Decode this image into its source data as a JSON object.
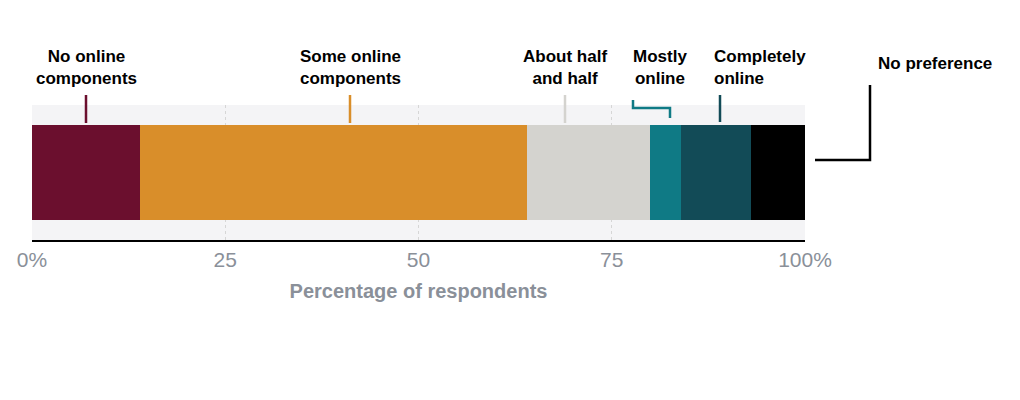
{
  "chart_data": {
    "type": "bar",
    "orientation": "horizontal",
    "stacked": true,
    "grid": true,
    "tick_labels": "x",
    "x_label": "Percentage of respondents",
    "categories": [
      null
    ],
    "series": [
      {
        "name": "No online components",
        "color": "#6b0f2e",
        "values": [
          14
        ]
      },
      {
        "name": "Some online components",
        "color": "#d98e2a",
        "values": [
          50
        ]
      },
      {
        "name": "About half and half",
        "color": "#d4d3cf",
        "values": [
          16
        ]
      },
      {
        "name": "Mostly online",
        "color": "#0f7a85",
        "values": [
          4
        ]
      },
      {
        "name": "Completely online",
        "color": "#124b57",
        "values": [
          9
        ]
      },
      {
        "name": "No preference",
        "color": "#000000",
        "values": [
          7
        ]
      }
    ],
    "xlim": [
      0,
      100
    ],
    "xticks": [
      {
        "value": 0,
        "label": "0%"
      },
      25,
      50,
      75,
      {
        "value": 100,
        "label": "100%"
      }
    ]
  }
}
